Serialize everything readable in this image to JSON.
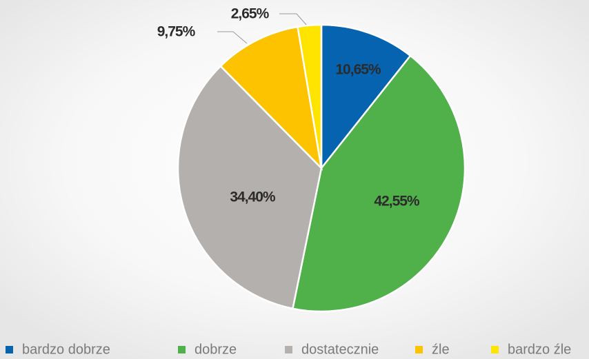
{
  "chart_data": {
    "type": "pie",
    "categories": [
      "bardzo dobrze",
      "dobrze",
      "dostatecznie",
      "źle",
      "bardzo źle"
    ],
    "values": [
      10.65,
      42.55,
      34.4,
      9.75,
      2.65
    ],
    "value_labels": [
      "10,65%",
      "42,55%",
      "34,40%",
      "9,75%",
      "2,65%"
    ],
    "colors": [
      "#0563b0",
      "#50b04a",
      "#b3b0ad",
      "#fdc300",
      "#ffe400"
    ],
    "legend": "bottom"
  }
}
